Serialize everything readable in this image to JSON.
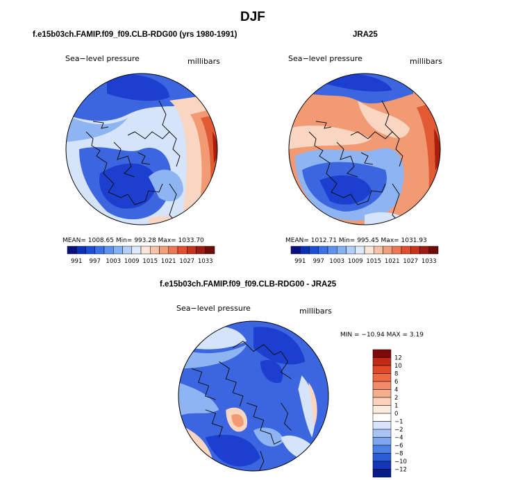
{
  "figure": {
    "title": "DJF"
  },
  "panels": [
    {
      "title": "f.e15b03ch.FAMIP.f09_f09.CLB-RDG00 (yrs 1980-1991)",
      "variable": "Sea−level pressure",
      "units": "millibars",
      "stats": {
        "mean": "1008.65",
        "min": "993.28",
        "max": "1033.70"
      },
      "stats_text": "MEAN= 1008.65   Min= 993.28   Max= 1033.70"
    },
    {
      "title": "JRA25",
      "variable": "Sea−level pressure",
      "units": "millibars",
      "stats": {
        "mean": "1012.71",
        "min": "995.45",
        "max": "1031.93"
      },
      "stats_text": "MEAN= 1012.71   Min= 995.45   Max= 1031.93"
    },
    {
      "title": "f.e15b03ch.FAMIP.f09_f09.CLB-RDG00 - JRA25",
      "variable": "Sea−level pressure",
      "units": "millibars",
      "stats": {
        "min": "−10.94",
        "max": "3.19"
      },
      "stats_text": "MIN = −10.94  MAX =     3.19"
    }
  ],
  "colorbar_abs": {
    "labels": [
      "991",
      "997",
      "1003",
      "1009",
      "1015",
      "1021",
      "1027",
      "1033"
    ],
    "colors": [
      "#08107f",
      "#0c2fb8",
      "#1a4fd6",
      "#3872e6",
      "#5c93ef",
      "#86b2f4",
      "#b3cff8",
      "#deeafa",
      "#fbe4d8",
      "#f7c3a8",
      "#f29f7c",
      "#ec7752",
      "#e0502e",
      "#c7321b",
      "#9e1b0f",
      "#6e0b06"
    ]
  },
  "colorbar_diff": {
    "labels": [
      "12",
      "10",
      "8",
      "6",
      "4",
      "2",
      "1",
      "0",
      "−1",
      "−2",
      "−4",
      "−6",
      "−8",
      "−10",
      "−12"
    ],
    "colors": [
      "#7d0a08",
      "#c22a17",
      "#e04a26",
      "#ec6b44",
      "#f28c68",
      "#f7ae8d",
      "#fad2bb",
      "#fcebdf",
      "#ffffff",
      "#d7e4fb",
      "#a9c5f5",
      "#7da6ef",
      "#4d80e6",
      "#2a5ed7",
      "#1337b6",
      "#061b88"
    ]
  },
  "map_colors": {
    "deep_blue": "#1d3fcf",
    "blue": "#3b66e0",
    "light_blue": "#8fb4f2",
    "pale_blue": "#d6e4fa",
    "pale_orange": "#f8d6c2",
    "orange": "#f19a74",
    "red": "#e05a34",
    "dark_red": "#a81f0e"
  }
}
